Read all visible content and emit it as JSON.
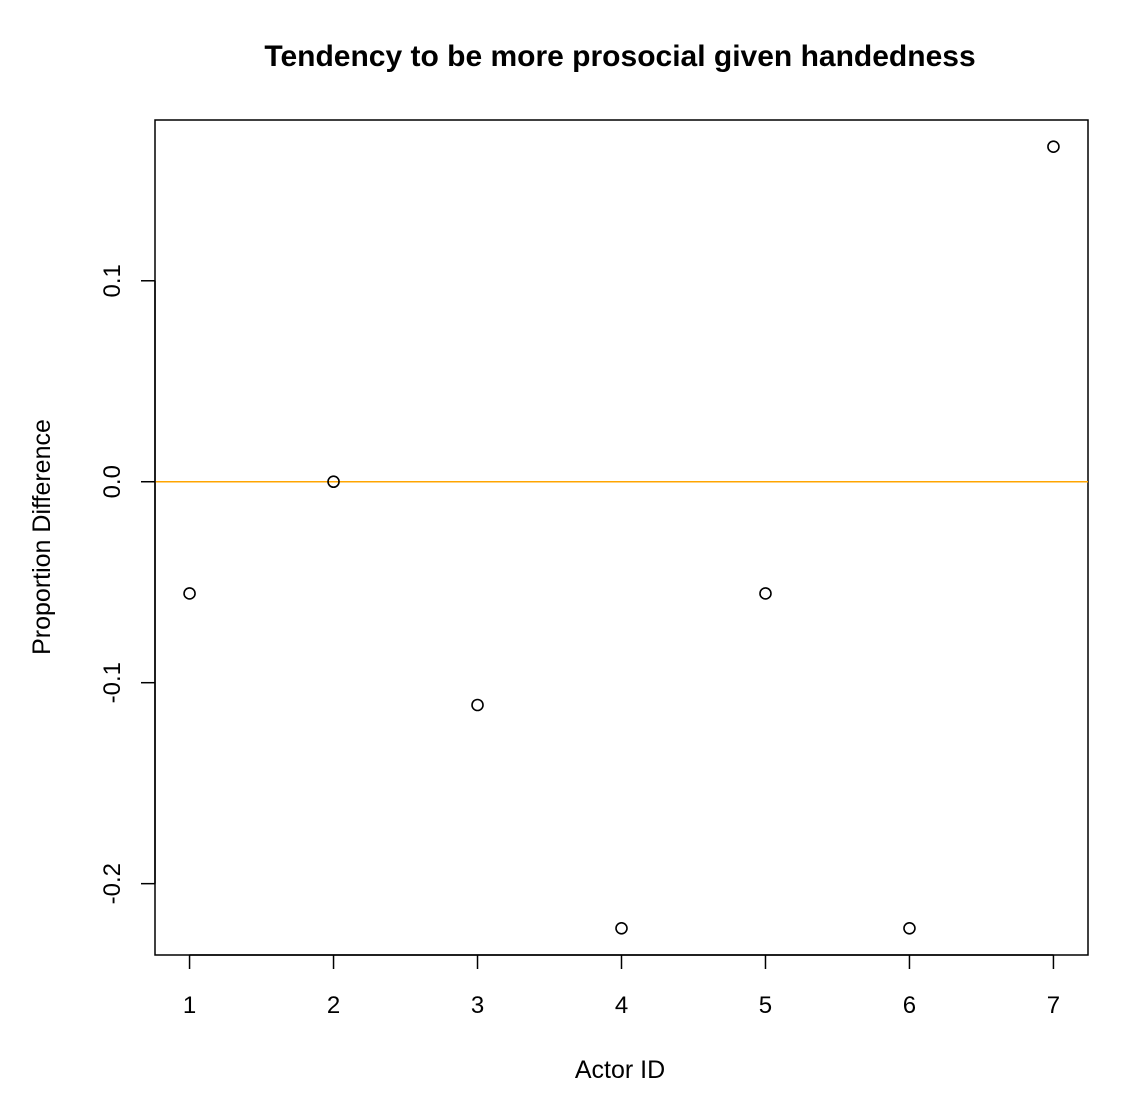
{
  "chart_data": {
    "type": "scatter",
    "title": "Tendency to be more prosocial given handedness",
    "xlabel": "Actor ID",
    "ylabel": "Proportion Difference",
    "x": [
      1,
      2,
      3,
      4,
      5,
      6,
      7
    ],
    "y": [
      -0.0556,
      0.0,
      -0.1111,
      -0.2222,
      -0.0556,
      -0.2222,
      0.1667
    ],
    "xlim": [
      0.76,
      7.24
    ],
    "ylim": [
      -0.2355,
      0.18
    ],
    "x_ticks": [
      1,
      2,
      3,
      4,
      5,
      6,
      7
    ],
    "x_tick_labels": [
      "1",
      "2",
      "3",
      "4",
      "5",
      "6",
      "7"
    ],
    "y_ticks": [
      -0.2,
      -0.1,
      0.0,
      0.1
    ],
    "y_tick_labels": [
      "-0.2",
      "-0.1",
      "0.0",
      "0.1"
    ],
    "reference_line": {
      "y": 0.0,
      "color": "#ffa500"
    },
    "point_marker": "open-circle",
    "point_color": "#000000",
    "grid": false,
    "legend": "none"
  }
}
